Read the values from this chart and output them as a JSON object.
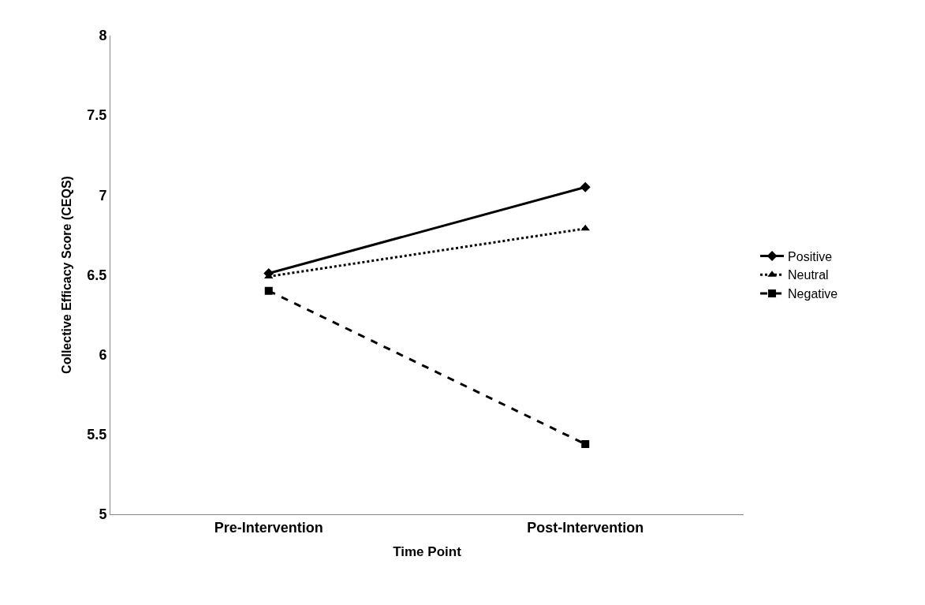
{
  "chart_data": {
    "type": "line",
    "xlabel": "Time Point",
    "ylabel": "Collective Efficacy Score (CEQS)",
    "categories": [
      "Pre-Intervention",
      "Post-Intervention"
    ],
    "series": [
      {
        "name": "Positive",
        "color": "#000000",
        "values": [
          6.51,
          7.05
        ],
        "marker": "diamond",
        "line_style": "solid"
      },
      {
        "name": "Neutral",
        "color": "#000000",
        "values": [
          6.49,
          6.79
        ],
        "marker": "triangle",
        "line_style": "dotted"
      },
      {
        "name": "Negative",
        "color": "#000000",
        "values": [
          6.4,
          5.44
        ],
        "marker": "square",
        "line_style": "dashed"
      }
    ],
    "ylim": [
      5,
      8
    ],
    "yticks": [
      5,
      5.5,
      6,
      6.5,
      7,
      7.5,
      8
    ],
    "legend": "right"
  }
}
